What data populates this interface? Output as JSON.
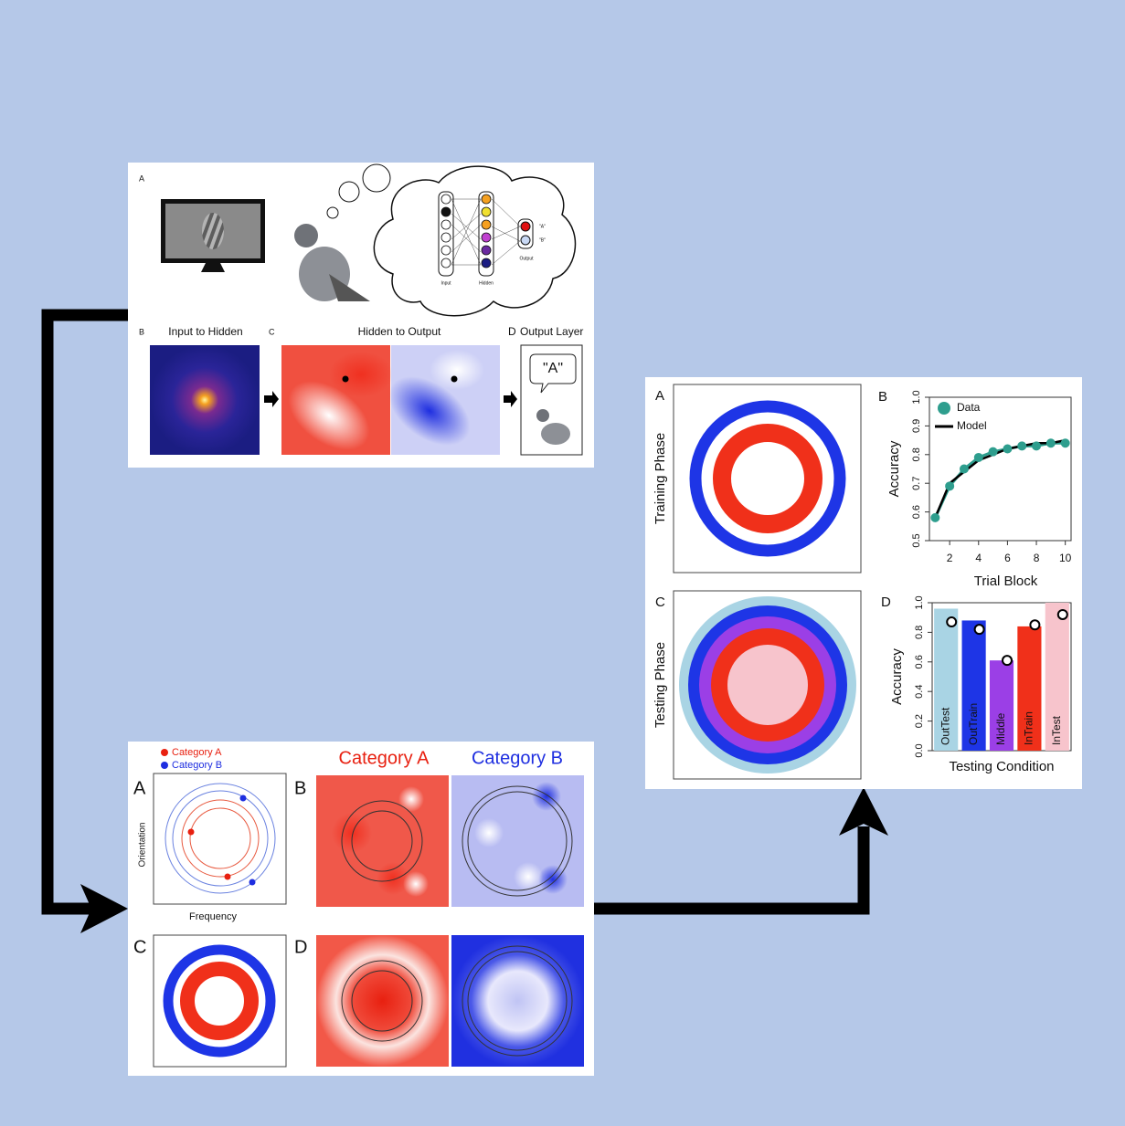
{
  "figure1": {
    "panel_a": "A",
    "input_label": "Input",
    "hidden_label": "Hidden",
    "output_label": "Output",
    "output_a": "\"A\"",
    "output_b": "\"B\"",
    "panel_b": "B",
    "panel_b_title": "Input to Hidden",
    "panel_c": "C",
    "panel_c_title": "Hidden to Output",
    "panel_d": "D",
    "panel_d_title": "Output Layer",
    "speech": "\"A\""
  },
  "figure2": {
    "legend": [
      "Category A",
      "Category B"
    ],
    "panel_a": "A",
    "y_label": "Orientation",
    "x_label": "Frequency",
    "panel_b": "B",
    "header_a": "Category A",
    "header_b": "Category B",
    "panel_c": "C",
    "panel_d": "D"
  },
  "figure3": {
    "panel_a": "A",
    "training_label": "Training Phase",
    "panel_c": "C",
    "testing_label": "Testing Phase",
    "chart_b": {
      "type": "line",
      "label": "B",
      "y_label": "Accuracy",
      "x_label": "Trial Block",
      "x": [
        1,
        2,
        3,
        4,
        5,
        6,
        7,
        8,
        9,
        10
      ],
      "series": [
        {
          "name": "Data",
          "color": "#2e9e8e",
          "values": [
            0.58,
            0.69,
            0.75,
            0.79,
            0.81,
            0.82,
            0.83,
            0.83,
            0.84,
            0.84
          ]
        },
        {
          "name": "Model",
          "color": "#000000",
          "values": [
            0.58,
            0.7,
            0.74,
            0.78,
            0.8,
            0.82,
            0.83,
            0.84,
            0.84,
            0.85
          ]
        }
      ],
      "xlim": [
        0.6,
        10.4
      ],
      "ylim": [
        0.5,
        1.0
      ],
      "xticks": [
        2,
        4,
        6,
        8,
        10
      ],
      "yticks": [
        0.5,
        0.6,
        0.7,
        0.8,
        0.9,
        {
          "value": 1,
          "label": "1.0"
        }
      ],
      "legend": "top-left"
    },
    "chart_d": {
      "type": "bar",
      "label": "D",
      "y_label": "Accuracy",
      "x_label": "Testing Condition",
      "categories": [
        "OutTest",
        "OutTrain",
        "Middle",
        "InTrain",
        "InTest"
      ],
      "values": [
        0.96,
        0.88,
        0.61,
        0.84,
        1.0
      ],
      "model_values": [
        0.87,
        0.82,
        0.61,
        0.85,
        0.92
      ],
      "colors": [
        "#a9d4e4",
        "#1e35e6",
        "#9b3fe6",
        "#f0301a",
        "#f7c4cc"
      ],
      "ylim": [
        0,
        1.0
      ],
      "yticks": [
        {
          "value": 0,
          "label": "0.0"
        },
        0.2,
        0.4,
        0.6,
        0.8,
        {
          "value": 1,
          "label": "1.0"
        }
      ]
    }
  }
}
